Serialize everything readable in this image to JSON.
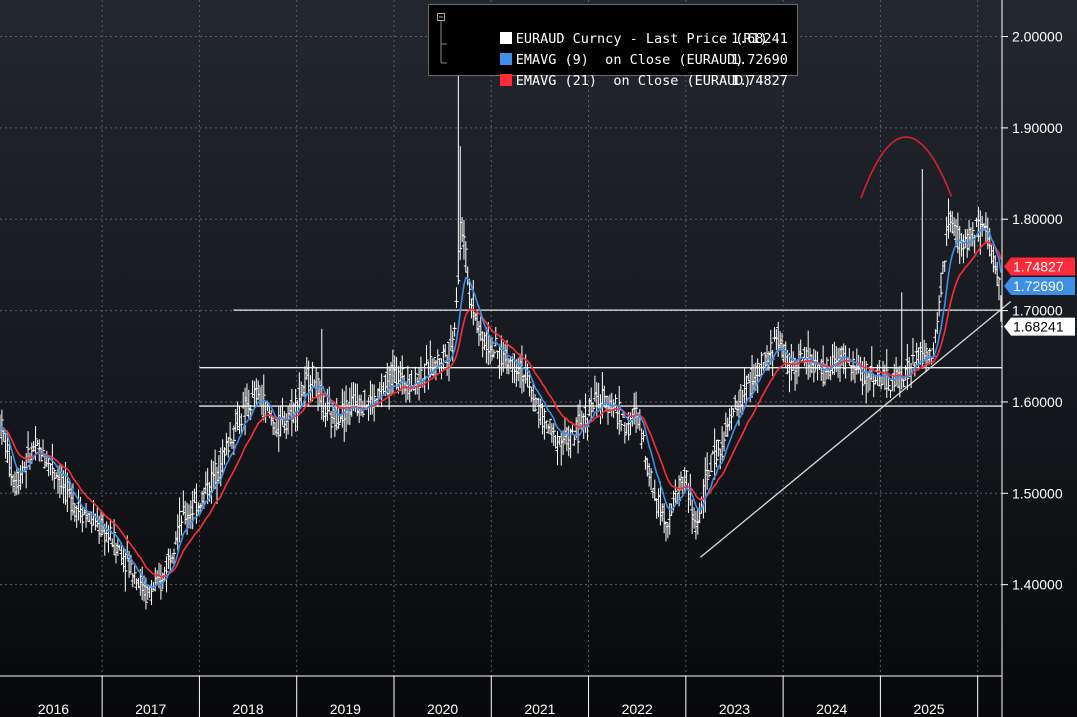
{
  "chart_data": {
    "type": "line",
    "title": "EURAUD Curncy",
    "ylim": [
      1.3,
      2.04
    ],
    "y_ticks": [
      "2.00000",
      "1.90000",
      "1.80000",
      "1.70000",
      "1.60000",
      "1.50000",
      "1.40000"
    ],
    "y_tick_values": [
      2.0,
      1.9,
      1.8,
      1.7,
      1.6,
      1.5,
      1.4
    ],
    "x_range": [
      2015.45,
      2025.75
    ],
    "year_labels": [
      "2016",
      "2017",
      "2018",
      "2019",
      "2020",
      "2021",
      "2022",
      "2023",
      "2024",
      "2025"
    ],
    "year_label_positions": [
      2016.0,
      2017.0,
      2018.0,
      2019.0,
      2020.0,
      2021.0,
      2022.0,
      2023.0,
      2024.0,
      2025.0
    ],
    "year_boundaries": [
      2016.5,
      2017.5,
      2018.5,
      2019.5,
      2020.5,
      2021.5,
      2022.5,
      2023.5,
      2024.5,
      2025.5
    ],
    "legend": [
      {
        "label": "EURAUD Curncy - Last Price (R1)",
        "value": "1.68241",
        "color": "#ffffff"
      },
      {
        "label": "EMAVG (9)  on Close (EURAUD)",
        "value": "1.72690",
        "color": "#3d8fe8"
      },
      {
        "label": "EMAVG (21)  on Close (EURAUD)",
        "value": "1.74827",
        "color": "#ff2b3a"
      }
    ],
    "price_tags": [
      {
        "text": "1.74827",
        "value": 1.74827,
        "bg": "#ff2b3a",
        "fg": "#ffffff"
      },
      {
        "text": "1.72690",
        "value": 1.7269,
        "bg": "#3d8fe8",
        "fg": "#ffffff"
      },
      {
        "text": "1.68241",
        "value": 1.68241,
        "bg": "#ffffff",
        "fg": "#000000"
      }
    ],
    "keypoints": [
      [
        2015.45,
        1.58
      ],
      [
        2015.6,
        1.51
      ],
      [
        2015.8,
        1.55
      ],
      [
        2016.0,
        1.53
      ],
      [
        2016.2,
        1.49
      ],
      [
        2016.4,
        1.47
      ],
      [
        2016.6,
        1.45
      ],
      [
        2016.8,
        1.42
      ],
      [
        2016.95,
        1.39
      ],
      [
        2017.1,
        1.4
      ],
      [
        2017.3,
        1.47
      ],
      [
        2017.5,
        1.49
      ],
      [
        2017.7,
        1.53
      ],
      [
        2017.9,
        1.58
      ],
      [
        2018.1,
        1.61
      ],
      [
        2018.3,
        1.57
      ],
      [
        2018.45,
        1.59
      ],
      [
        2018.65,
        1.63
      ],
      [
        2018.85,
        1.58
      ],
      [
        2019.1,
        1.6
      ],
      [
        2019.3,
        1.6
      ],
      [
        2019.5,
        1.63
      ],
      [
        2019.7,
        1.62
      ],
      [
        2019.9,
        1.64
      ],
      [
        2020.1,
        1.66
      ],
      [
        2020.2,
        1.79
      ],
      [
        2020.28,
        1.72
      ],
      [
        2020.4,
        1.67
      ],
      [
        2020.6,
        1.65
      ],
      [
        2020.8,
        1.64
      ],
      [
        2020.95,
        1.6
      ],
      [
        2021.15,
        1.56
      ],
      [
        2021.35,
        1.56
      ],
      [
        2021.55,
        1.6
      ],
      [
        2021.75,
        1.6
      ],
      [
        2021.9,
        1.57
      ],
      [
        2022.0,
        1.59
      ],
      [
        2022.15,
        1.51
      ],
      [
        2022.3,
        1.47
      ],
      [
        2022.5,
        1.52
      ],
      [
        2022.6,
        1.46
      ],
      [
        2022.75,
        1.53
      ],
      [
        2022.9,
        1.56
      ],
      [
        2023.0,
        1.59
      ],
      [
        2023.15,
        1.62
      ],
      [
        2023.3,
        1.64
      ],
      [
        2023.45,
        1.67
      ],
      [
        2023.55,
        1.64
      ],
      [
        2023.75,
        1.65
      ],
      [
        2023.9,
        1.63
      ],
      [
        2024.1,
        1.65
      ],
      [
        2024.3,
        1.63
      ],
      [
        2024.45,
        1.63
      ],
      [
        2024.6,
        1.62
      ],
      [
        2024.75,
        1.63
      ],
      [
        2024.9,
        1.65
      ],
      [
        2025.05,
        1.65
      ],
      [
        2025.2,
        1.8
      ],
      [
        2025.35,
        1.77
      ],
      [
        2025.5,
        1.79
      ],
      [
        2025.6,
        1.78
      ],
      [
        2025.65,
        1.76
      ],
      [
        2025.72,
        1.74
      ],
      [
        2025.75,
        1.682
      ]
    ],
    "ema9_last": 1.7269,
    "ema21_last": 1.74827,
    "annotations": {
      "horizontal_lines": [
        {
          "y": 1.7005,
          "x_from": 2017.85
        },
        {
          "y": 1.6375,
          "x_from": 2017.5
        },
        {
          "y": 1.5955,
          "x_from": 2017.5
        }
      ],
      "trendline": {
        "from": [
          2022.65,
          1.43
        ],
        "to": [
          2025.84,
          1.71
        ]
      },
      "top_arc": {
        "from": [
          2024.3,
          1.823
        ],
        "peak": [
          2024.76,
          1.89
        ],
        "to": [
          2025.23,
          1.825
        ]
      }
    }
  }
}
